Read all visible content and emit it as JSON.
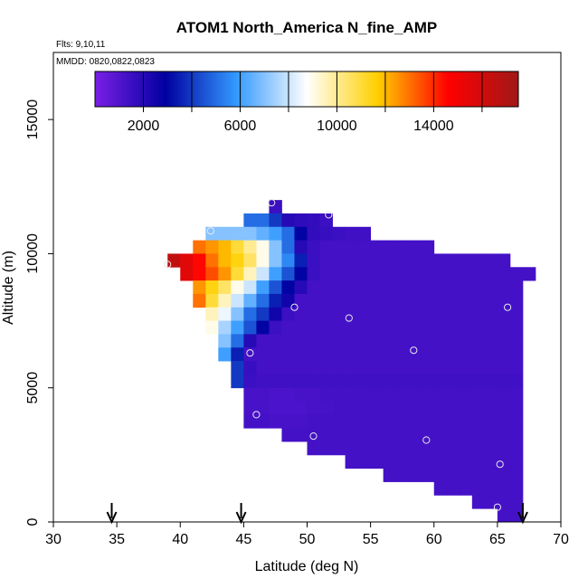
{
  "chart_data": {
    "type": "heatmap",
    "title": "ATOM1 North_America N_fine_AMP",
    "annotations": {
      "flights": "Flts: 9,10,11",
      "dates": "MMDD: 0820,0822,0823"
    },
    "xlabel": "Latitude (deg N)",
    "ylabel": "Altitude (m)",
    "xlim": [
      30,
      70
    ],
    "ylim": [
      0,
      17500
    ],
    "x_ticks": [
      30,
      35,
      40,
      45,
      50,
      55,
      60,
      65,
      70
    ],
    "y_ticks": [
      0,
      5000,
      10000,
      15000
    ],
    "colorbar": {
      "range": [
        0,
        17500
      ],
      "tick_values": [
        2000,
        6000,
        10000,
        14000
      ],
      "colors": [
        "#7a1fe6",
        "#0000a0",
        "#3399ff",
        "#ffffff",
        "#ffd000",
        "#ff0000",
        "#a01818"
      ]
    },
    "cell_size": {
      "lat": 1,
      "alt": 500
    },
    "rows": [
      {
        "alt": 11750,
        "lat_start": 47,
        "values": [
          1500
        ]
      },
      {
        "alt": 11250,
        "lat_start": 45,
        "values": [
          5000,
          5000,
          4000,
          2000,
          1800,
          1700,
          1500
        ]
      },
      {
        "alt": 10750,
        "lat_start": 42,
        "values": [
          7000,
          7000,
          7000,
          7000,
          6500,
          6000,
          5000,
          3000,
          1700,
          1600,
          1500,
          1400,
          1400
        ]
      },
      {
        "alt": 10250,
        "lat_start": 41,
        "values": [
          13000,
          12500,
          12000,
          11000,
          10000,
          9000,
          7000,
          5000,
          2000,
          1500,
          1300,
          1300,
          1300,
          1300,
          1300,
          1300,
          1300,
          1300,
          1300
        ]
      },
      {
        "alt": 9750,
        "lat_start": 39,
        "values": [
          16500,
          15500,
          14500,
          13000,
          12000,
          11500,
          10500,
          9000,
          7000,
          5500,
          3500,
          1500,
          1300,
          1300,
          1300,
          1300,
          1300,
          1300,
          1300,
          1300,
          1300,
          1300,
          1300,
          1300,
          1300,
          1300,
          1300
        ]
      },
      {
        "alt": 9250,
        "lat_start": 40,
        "values": [
          15500,
          14500,
          13500,
          12500,
          11000,
          9500,
          8000,
          6000,
          4500,
          3000,
          1500,
          1300,
          1300,
          1300,
          1300,
          1300,
          1300,
          1300,
          1300,
          1300,
          1300,
          1300,
          1300,
          1300,
          1300,
          1300,
          1300,
          1300
        ]
      },
      {
        "alt": 8750,
        "lat_start": 41,
        "values": [
          12500,
          11500,
          10500,
          9000,
          8000,
          6000,
          4500,
          3000,
          2000,
          1300,
          1300,
          1300,
          1300,
          1300,
          1300,
          1300,
          1300,
          1300,
          1300,
          1300,
          1300,
          1300,
          1300,
          1300,
          1300,
          1300
        ]
      },
      {
        "alt": 8250,
        "lat_start": 41,
        "values": [
          13000,
          11000,
          9500,
          8000,
          6500,
          5000,
          3500,
          2500,
          1300,
          1300,
          1300,
          1300,
          1300,
          1300,
          1300,
          1300,
          1300,
          1300,
          1300,
          1300,
          1300,
          1300,
          1300,
          1300,
          1300,
          1300
        ]
      },
      {
        "alt": 7750,
        "lat_start": 42,
        "values": [
          9500,
          8500,
          7000,
          5000,
          4000,
          2500,
          1500,
          1300,
          1300,
          1300,
          1300,
          1300,
          1300,
          1300,
          1300,
          1300,
          1300,
          1300,
          1300,
          1300,
          1300,
          1300,
          1300,
          1300,
          1300
        ]
      },
      {
        "alt": 7250,
        "lat_start": 42,
        "values": [
          9000,
          7500,
          6000,
          4500,
          3000,
          1500,
          1300,
          1300,
          1300,
          1300,
          1300,
          1300,
          1300,
          1300,
          1300,
          1300,
          1300,
          1300,
          1300,
          1300,
          1300,
          1300,
          1300,
          1300,
          1300
        ]
      },
      {
        "alt": 6750,
        "lat_start": 43,
        "values": [
          7000,
          5000,
          2000,
          1300,
          1300,
          1300,
          1300,
          1300,
          1300,
          1300,
          1300,
          1300,
          1300,
          1300,
          1300,
          1300,
          1300,
          1300,
          1300,
          1300,
          1300,
          1300,
          1300,
          1300
        ]
      },
      {
        "alt": 6250,
        "lat_start": 43,
        "values": [
          6000,
          3500,
          1300,
          1300,
          1300,
          1300,
          1300,
          1300,
          1300,
          1300,
          1300,
          1300,
          1300,
          1300,
          1300,
          1300,
          1300,
          1300,
          1300,
          1300,
          1300,
          1300,
          1300,
          1300
        ]
      },
      {
        "alt": 5750,
        "lat_start": 44,
        "values": [
          4000,
          1600,
          1300,
          1300,
          1300,
          1300,
          1300,
          1300,
          1300,
          1300,
          1300,
          1300,
          1300,
          1300,
          1300,
          1300,
          1300,
          1300,
          1300,
          1300,
          1300,
          1300,
          1300
        ]
      },
      {
        "alt": 5250,
        "lat_start": 44,
        "values": [
          4000,
          1500,
          1400,
          1400,
          1400,
          1400,
          1400,
          1400,
          1400,
          1400,
          1400,
          1400,
          1400,
          1400,
          1400,
          1400,
          1400,
          1400,
          1400,
          1400,
          1400,
          1400,
          1400
        ]
      },
      {
        "alt": 4750,
        "lat_start": 45,
        "values": [
          1200,
          1200,
          1100,
          1100,
          1200,
          1200,
          1300,
          1300,
          1300,
          1300,
          1300,
          1300,
          1300,
          1300,
          1300,
          1300,
          1300,
          1300,
          1300,
          1300,
          1300,
          1300
        ]
      },
      {
        "alt": 4250,
        "lat_start": 45,
        "values": [
          1200,
          1200,
          1100,
          1100,
          1100,
          1200,
          1200,
          1300,
          1300,
          1300,
          1300,
          1300,
          1300,
          1300,
          1300,
          1300,
          1300,
          1300,
          1300,
          1300,
          1300,
          1300
        ]
      },
      {
        "alt": 3750,
        "lat_start": 45,
        "values": [
          1300,
          1300,
          1200,
          1200,
          1200,
          1300,
          1300,
          1300,
          1300,
          1300,
          1300,
          1300,
          1300,
          1300,
          1300,
          1300,
          1300,
          1300,
          1300,
          1300,
          1300,
          1300
        ]
      },
      {
        "alt": 3250,
        "lat_start": 48,
        "values": [
          1300,
          1300,
          1300,
          1300,
          1300,
          1300,
          1300,
          1300,
          1300,
          1300,
          1300,
          1300,
          1300,
          1300,
          1300,
          1300,
          1300,
          1300,
          1300
        ]
      },
      {
        "alt": 2750,
        "lat_start": 50,
        "values": [
          1300,
          1300,
          1300,
          1300,
          1300,
          1300,
          1300,
          1300,
          1300,
          1300,
          1300,
          1300,
          1300,
          1300,
          1300,
          1300,
          1300
        ]
      },
      {
        "alt": 2250,
        "lat_start": 53,
        "values": [
          1300,
          1300,
          1300,
          1300,
          1300,
          1300,
          1300,
          1300,
          1300,
          1300,
          1300,
          1300,
          1300,
          1300
        ]
      },
      {
        "alt": 1750,
        "lat_start": 56,
        "values": [
          1300,
          1300,
          1300,
          1300,
          1300,
          1300,
          1300,
          1300,
          1300,
          1300,
          1300
        ]
      },
      {
        "alt": 1250,
        "lat_start": 60,
        "values": [
          1300,
          1300,
          1300,
          1300,
          1300,
          1300,
          1300
        ]
      },
      {
        "alt": 750,
        "lat_start": 63,
        "values": [
          1300,
          1300,
          1300,
          1300
        ]
      },
      {
        "alt": 250,
        "lat_start": 65,
        "values": [
          1300,
          1300
        ]
      }
    ],
    "markers": [
      {
        "lat": 47.2,
        "alt": 11900
      },
      {
        "lat": 51.7,
        "alt": 11450
      },
      {
        "lat": 42.4,
        "alt": 10850
      },
      {
        "lat": 39.0,
        "alt": 9600
      },
      {
        "lat": 49.0,
        "alt": 8000
      },
      {
        "lat": 53.3,
        "alt": 7600
      },
      {
        "lat": 65.8,
        "alt": 8000
      },
      {
        "lat": 58.4,
        "alt": 6400
      },
      {
        "lat": 45.5,
        "alt": 6300
      },
      {
        "lat": 46.0,
        "alt": 4000
      },
      {
        "lat": 50.5,
        "alt": 3200
      },
      {
        "lat": 59.4,
        "alt": 3050
      },
      {
        "lat": 65.2,
        "alt": 2150
      },
      {
        "lat": 65.0,
        "alt": 550
      }
    ],
    "flight_arrows_lat": [
      34.6,
      44.8,
      67.0
    ]
  }
}
